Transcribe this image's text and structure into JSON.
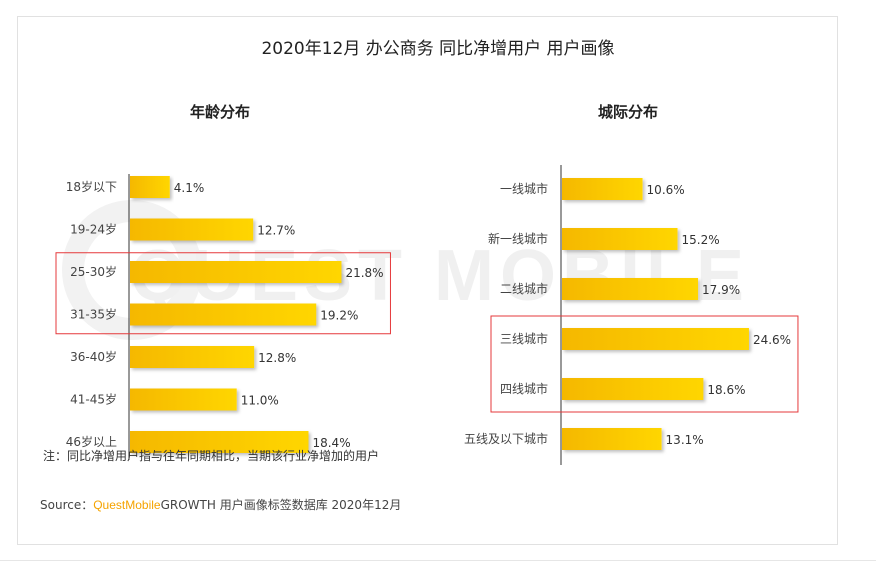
{
  "title": "2020年12月 办公商务 同比净增用户 用户画像",
  "note": "注：同比净增用户指与往年同期相比，当期该行业净增加的用户",
  "source": {
    "prefix": "Source：",
    "brand": "QuestMobile",
    "suffix": "GROWTH 用户画像标签数据库 2020年12月"
  },
  "watermark": "QUEST MOBILE",
  "colors": {
    "bar_start": "#f5b800",
    "bar_end": "#ffd600",
    "highlight_box": "#e5393b",
    "brand": "#f5a300"
  },
  "chart_data": [
    {
      "type": "bar",
      "orientation": "horizontal",
      "title": "年龄分布",
      "categories": [
        "18岁以下",
        "19-24岁",
        "25-30岁",
        "31-35岁",
        "36-40岁",
        "41-45岁",
        "46岁以上"
      ],
      "values": [
        4.1,
        12.7,
        21.8,
        19.2,
        12.8,
        11.0,
        18.4
      ],
      "value_labels": [
        "4.1%",
        "12.7%",
        "21.8%",
        "19.2%",
        "12.8%",
        "11.0%",
        "18.4%"
      ],
      "highlighted": [
        "25-30岁",
        "31-35岁"
      ],
      "unit": "%"
    },
    {
      "type": "bar",
      "orientation": "horizontal",
      "title": "城际分布",
      "categories": [
        "一线城市",
        "新一线城市",
        "二线城市",
        "三线城市",
        "四线城市",
        "五线及以下城市"
      ],
      "values": [
        10.6,
        15.2,
        17.9,
        24.6,
        18.6,
        13.1
      ],
      "value_labels": [
        "10.6%",
        "15.2%",
        "17.9%",
        "24.6%",
        "18.6%",
        "13.1%"
      ],
      "highlighted": [
        "三线城市",
        "四线城市"
      ],
      "unit": "%"
    }
  ]
}
